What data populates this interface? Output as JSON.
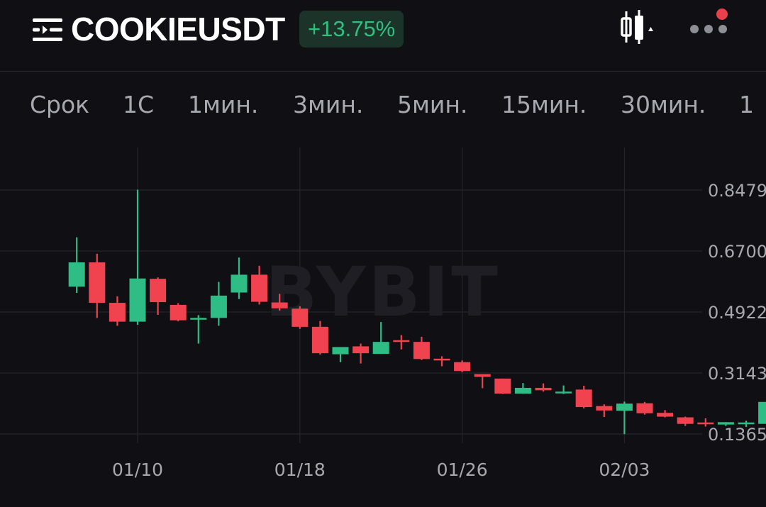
{
  "header": {
    "symbol": "COOKIEUSDT",
    "change": "+13.75%",
    "menu_icon": "menu-list-icon",
    "chart_type_icon": "candlestick-icon",
    "more_icon": "more-dots-icon",
    "notification_color": "#e8414b"
  },
  "tabs": [
    {
      "label": "Срок"
    },
    {
      "label": "1С"
    },
    {
      "label": "1мин."
    },
    {
      "label": "3мин."
    },
    {
      "label": "5мин."
    },
    {
      "label": "15мин."
    },
    {
      "label": "30мин."
    },
    {
      "label": "1"
    }
  ],
  "watermark": "BYBIT",
  "colors": {
    "up": "#2ebd85",
    "down": "#f0434f",
    "badge_text": "#2ec07e"
  },
  "chart_data": {
    "type": "candlestick",
    "y_ticks": [
      "0.8479",
      "0.6700",
      "0.4922",
      "0.3143",
      "0.1365"
    ],
    "x_ticks": [
      {
        "label": "01/10",
        "day": "2025-01-10"
      },
      {
        "label": "01/18",
        "day": "2025-01-18"
      },
      {
        "label": "01/26",
        "day": "2025-01-26"
      },
      {
        "label": "02/03",
        "day": "2025-02-03"
      }
    ],
    "candles": [
      {
        "day": "2025-01-07",
        "open": 0.566,
        "high": 0.71,
        "low": 0.548,
        "close": 0.637
      },
      {
        "day": "2025-01-08",
        "open": 0.637,
        "high": 0.662,
        "low": 0.475,
        "close": 0.519
      },
      {
        "day": "2025-01-09",
        "open": 0.519,
        "high": 0.538,
        "low": 0.452,
        "close": 0.464
      },
      {
        "day": "2025-01-10",
        "open": 0.464,
        "high": 0.849,
        "low": 0.455,
        "close": 0.59
      },
      {
        "day": "2025-01-11",
        "open": 0.589,
        "high": 0.593,
        "low": 0.484,
        "close": 0.521
      },
      {
        "day": "2025-01-12",
        "open": 0.513,
        "high": 0.518,
        "low": 0.465,
        "close": 0.468
      },
      {
        "day": "2025-01-13",
        "open": 0.473,
        "high": 0.483,
        "low": 0.4,
        "close": 0.475
      },
      {
        "day": "2025-01-14",
        "open": 0.475,
        "high": 0.58,
        "low": 0.452,
        "close": 0.54
      },
      {
        "day": "2025-01-15",
        "open": 0.549,
        "high": 0.651,
        "low": 0.53,
        "close": 0.601
      },
      {
        "day": "2025-01-16",
        "open": 0.601,
        "high": 0.627,
        "low": 0.514,
        "close": 0.522
      },
      {
        "day": "2025-01-17",
        "open": 0.52,
        "high": 0.545,
        "low": 0.496,
        "close": 0.503
      },
      {
        "day": "2025-01-18",
        "open": 0.502,
        "high": 0.509,
        "low": 0.443,
        "close": 0.449
      },
      {
        "day": "2025-01-19",
        "open": 0.449,
        "high": 0.466,
        "low": 0.368,
        "close": 0.372
      },
      {
        "day": "2025-01-20",
        "open": 0.369,
        "high": 0.39,
        "low": 0.346,
        "close": 0.39
      },
      {
        "day": "2025-01-21",
        "open": 0.392,
        "high": 0.4,
        "low": 0.342,
        "close": 0.372
      },
      {
        "day": "2025-01-22",
        "open": 0.37,
        "high": 0.463,
        "low": 0.37,
        "close": 0.405
      },
      {
        "day": "2025-01-23",
        "open": 0.41,
        "high": 0.425,
        "low": 0.383,
        "close": 0.407
      },
      {
        "day": "2025-01-24",
        "open": 0.405,
        "high": 0.42,
        "low": 0.352,
        "close": 0.355
      },
      {
        "day": "2025-01-25",
        "open": 0.356,
        "high": 0.363,
        "low": 0.334,
        "close": 0.353
      },
      {
        "day": "2025-01-26",
        "open": 0.346,
        "high": 0.351,
        "low": 0.317,
        "close": 0.32
      },
      {
        "day": "2025-01-27",
        "open": 0.311,
        "high": 0.31,
        "low": 0.27,
        "close": 0.303
      },
      {
        "day": "2025-01-28",
        "open": 0.298,
        "high": 0.298,
        "low": 0.253,
        "close": 0.254
      },
      {
        "day": "2025-01-29",
        "open": 0.254,
        "high": 0.285,
        "low": 0.254,
        "close": 0.271
      },
      {
        "day": "2025-01-30",
        "open": 0.271,
        "high": 0.284,
        "low": 0.26,
        "close": 0.264
      },
      {
        "day": "2025-01-31",
        "open": 0.255,
        "high": 0.278,
        "low": 0.253,
        "close": 0.26
      },
      {
        "day": "2025-02-01",
        "open": 0.266,
        "high": 0.277,
        "low": 0.211,
        "close": 0.215
      },
      {
        "day": "2025-02-02",
        "open": 0.218,
        "high": 0.223,
        "low": 0.186,
        "close": 0.205
      },
      {
        "day": "2025-02-03",
        "open": 0.204,
        "high": 0.231,
        "low": 0.136,
        "close": 0.225
      },
      {
        "day": "2025-02-04",
        "open": 0.226,
        "high": 0.23,
        "low": 0.193,
        "close": 0.197
      },
      {
        "day": "2025-02-05",
        "open": 0.198,
        "high": 0.206,
        "low": 0.185,
        "close": 0.187
      },
      {
        "day": "2025-02-06",
        "open": 0.185,
        "high": 0.187,
        "low": 0.16,
        "close": 0.166
      },
      {
        "day": "2025-02-07",
        "open": 0.17,
        "high": 0.182,
        "low": 0.158,
        "close": 0.166
      },
      {
        "day": "2025-02-08",
        "open": 0.164,
        "high": 0.171,
        "low": 0.16,
        "close": 0.171
      },
      {
        "day": "2025-02-09",
        "open": 0.165,
        "high": 0.175,
        "low": 0.157,
        "close": 0.17
      },
      {
        "day": "2025-02-10",
        "open": 0.166,
        "high": 0.23,
        "low": 0.166,
        "close": 0.23
      }
    ]
  }
}
